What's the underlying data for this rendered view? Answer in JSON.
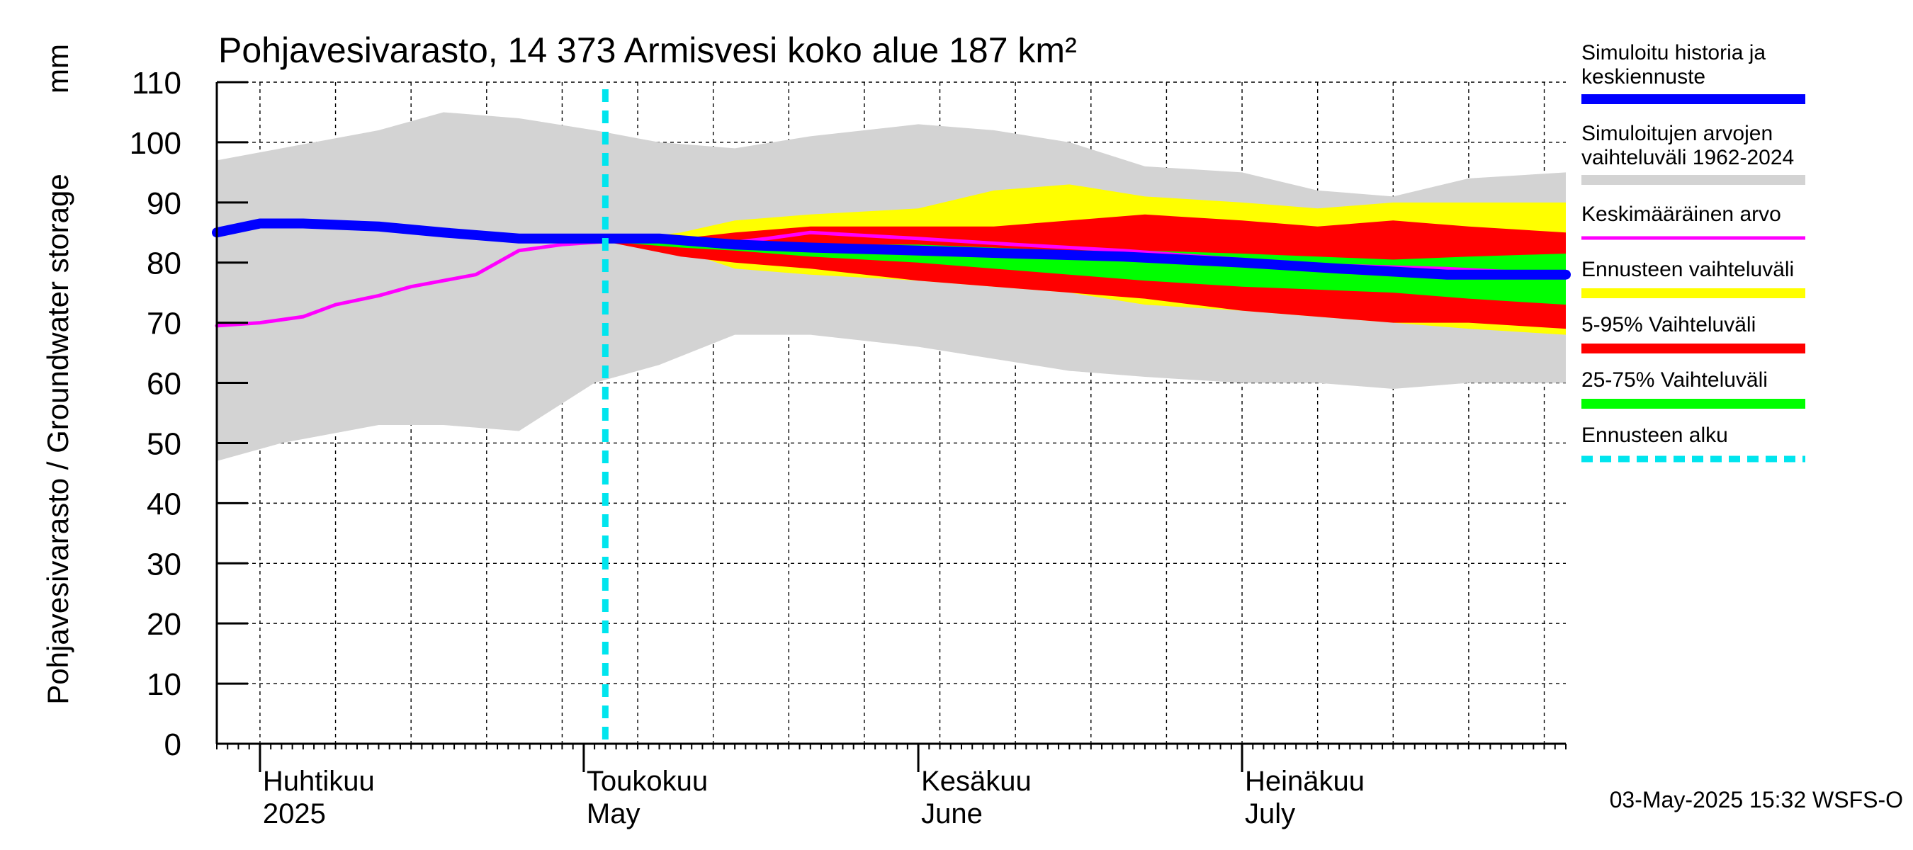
{
  "chart_data": {
    "type": "area",
    "title": "Pohjavesivarasto, 14 373 Armisvesi koko alue 187 km²",
    "ylabel": "Pohjavesivarasto / Groundwater storage",
    "yunit": "mm",
    "ylim": [
      0,
      110
    ],
    "yticks": [
      0,
      10,
      20,
      30,
      40,
      50,
      60,
      70,
      80,
      90,
      100,
      110
    ],
    "xlim": [
      "2025-03-28",
      "2025-07-31"
    ],
    "x_month_labels": [
      {
        "date": "2025-04-01",
        "line1": "Huhtikuu",
        "line2": "2025"
      },
      {
        "date": "2025-05-01",
        "line1": "Toukokuu",
        "line2": "May"
      },
      {
        "date": "2025-06-01",
        "line1": "Kesäkuu",
        "line2": "June"
      },
      {
        "date": "2025-07-01",
        "line1": "Heinäkuu",
        "line2": "July"
      }
    ],
    "grid": true,
    "forecast_start": "2025-05-03",
    "legend_position": "right",
    "series": [
      {
        "name": "Simuloitujen arvojen vaihteluväli 1962-2024",
        "kind": "band",
        "color": "#d3d3d3",
        "x": [
          "2025-03-28",
          "2025-04-03",
          "2025-04-12",
          "2025-04-18",
          "2025-04-25",
          "2025-05-02",
          "2025-05-08",
          "2025-05-15",
          "2025-05-22",
          "2025-06-01",
          "2025-06-08",
          "2025-06-15",
          "2025-06-22",
          "2025-07-01",
          "2025-07-08",
          "2025-07-15",
          "2025-07-22",
          "2025-07-31"
        ],
        "low": [
          47,
          50,
          53,
          53,
          52,
          60,
          63,
          68,
          68,
          66,
          64,
          62,
          61,
          60,
          60,
          59,
          60,
          60
        ],
        "high": [
          97,
          99,
          102,
          105,
          104,
          102,
          100,
          99,
          101,
          103,
          102,
          100,
          96,
          95,
          92,
          91,
          94,
          95
        ]
      },
      {
        "name": "Ennusteen vaihteluväli",
        "kind": "band",
        "color": "#ffff00",
        "x": [
          "2025-05-03",
          "2025-05-10",
          "2025-05-15",
          "2025-05-22",
          "2025-06-01",
          "2025-06-08",
          "2025-06-15",
          "2025-06-22",
          "2025-07-01",
          "2025-07-08",
          "2025-07-15",
          "2025-07-22",
          "2025-07-31"
        ],
        "low": [
          83.5,
          82,
          79,
          78,
          77,
          76,
          75,
          73,
          72,
          71,
          70,
          69,
          68
        ],
        "high": [
          83.5,
          85,
          87,
          88,
          89,
          92,
          93,
          91,
          90,
          89,
          90,
          90,
          90
        ]
      },
      {
        "name": "5-95% Vaihteluväli",
        "kind": "band",
        "color": "#ff0000",
        "x": [
          "2025-05-03",
          "2025-05-10",
          "2025-05-15",
          "2025-05-22",
          "2025-06-01",
          "2025-06-08",
          "2025-06-15",
          "2025-06-22",
          "2025-07-01",
          "2025-07-08",
          "2025-07-15",
          "2025-07-22",
          "2025-07-31"
        ],
        "low": [
          83.5,
          81,
          80,
          79,
          77,
          76,
          75,
          74,
          72,
          71,
          70,
          70,
          69
        ],
        "high": [
          83.5,
          84,
          85,
          86,
          86,
          86,
          87,
          88,
          87,
          86,
          87,
          86,
          85
        ]
      },
      {
        "name": "25-75% Vaihteluväli",
        "kind": "band",
        "color": "#00ff00",
        "x": [
          "2025-05-03",
          "2025-05-10",
          "2025-05-15",
          "2025-05-22",
          "2025-06-01",
          "2025-06-08",
          "2025-06-15",
          "2025-06-22",
          "2025-07-01",
          "2025-07-08",
          "2025-07-15",
          "2025-07-22",
          "2025-07-31"
        ],
        "low": [
          83.5,
          82.5,
          82,
          81,
          80,
          79,
          78,
          77,
          76,
          75.5,
          75,
          74,
          73
        ],
        "high": [
          83.5,
          83.5,
          83,
          83,
          83,
          82.5,
          82,
          82,
          81.5,
          81,
          80.5,
          81,
          81.5
        ]
      },
      {
        "name": "Keskimääräinen arvo",
        "kind": "line",
        "color": "#ff00ff",
        "x": [
          "2025-03-28",
          "2025-04-01",
          "2025-04-05",
          "2025-04-08",
          "2025-04-12",
          "2025-04-15",
          "2025-04-18",
          "2025-04-21",
          "2025-04-25",
          "2025-04-29",
          "2025-05-03",
          "2025-05-08",
          "2025-05-13",
          "2025-05-18",
          "2025-05-22",
          "2025-06-01",
          "2025-06-10",
          "2025-06-20",
          "2025-07-01",
          "2025-07-10",
          "2025-07-20",
          "2025-07-31"
        ],
        "y": [
          69.5,
          70,
          71,
          73,
          74.5,
          76,
          77,
          78,
          82,
          83,
          83.5,
          83.5,
          83,
          84,
          85,
          84,
          83,
          82,
          80.5,
          79.5,
          79,
          78
        ]
      },
      {
        "name": "Simuloitu historia ja keskiennuste",
        "kind": "line",
        "color": "#0000ff",
        "x": [
          "2025-03-28",
          "2025-04-01",
          "2025-04-05",
          "2025-04-12",
          "2025-04-18",
          "2025-04-25",
          "2025-05-03",
          "2025-05-08",
          "2025-05-15",
          "2025-05-22",
          "2025-06-01",
          "2025-06-10",
          "2025-06-20",
          "2025-07-01",
          "2025-07-10",
          "2025-07-20",
          "2025-07-31"
        ],
        "y": [
          85,
          86.5,
          86.5,
          86,
          85,
          84,
          84,
          84,
          83,
          82.5,
          82,
          81.5,
          81,
          80,
          79,
          78,
          78
        ]
      },
      {
        "name": "Ennusteen alku",
        "kind": "vline",
        "color": "#00e5ee",
        "x": "2025-05-03"
      }
    ]
  },
  "legend": [
    {
      "key": "history",
      "label_line1": "Simuloitu historia ja",
      "label_line2": "keskiennuste",
      "color": "#0000ff",
      "style": "solid"
    },
    {
      "key": "range",
      "label_line1": "Simuloitujen arvojen",
      "label_line2": "vaihteluväli 1962-2024",
      "color": "#d3d3d3",
      "style": "solid"
    },
    {
      "key": "mean",
      "label_line1": "Keskimääräinen arvo",
      "label_line2": "",
      "color": "#ff00ff",
      "style": "thin"
    },
    {
      "key": "forecast_range",
      "label_line1": "Ennusteen vaihteluväli",
      "label_line2": "",
      "color": "#ffff00",
      "style": "solid"
    },
    {
      "key": "p5_95",
      "label_line1": "5-95% Vaihteluväli",
      "label_line2": "",
      "color": "#ff0000",
      "style": "solid"
    },
    {
      "key": "p25_75",
      "label_line1": "25-75% Vaihteluväli",
      "label_line2": "",
      "color": "#00ff00",
      "style": "solid"
    },
    {
      "key": "forecast_start",
      "label_line1": "Ennusteen alku",
      "label_line2": "",
      "color": "#00e5ee",
      "style": "dashed"
    }
  ],
  "footer": "03-May-2025 15:32 WSFS-O"
}
